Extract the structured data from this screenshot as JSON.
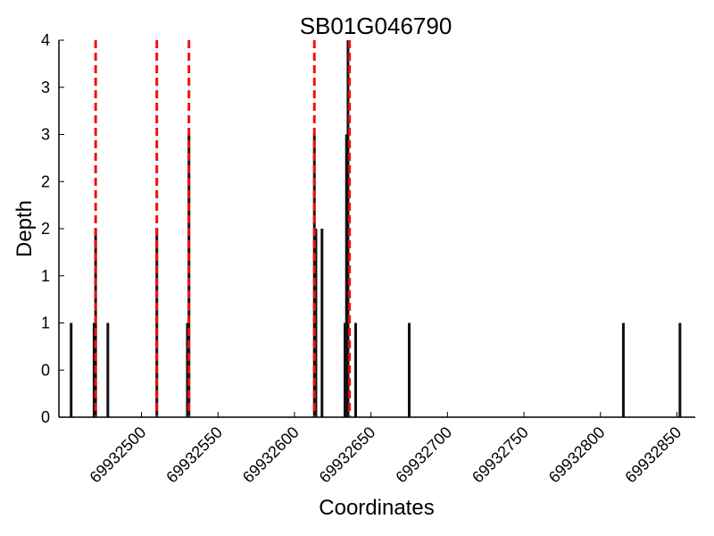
{
  "chart_data": {
    "type": "bar",
    "title": "SB01G046790",
    "xlabel": "Coordinates",
    "ylabel": "Depth",
    "xlim": [
      69932446,
      69932862
    ],
    "ylim": [
      0,
      4
    ],
    "x_ticks": [
      69932500,
      69932550,
      69932600,
      69932650,
      69932700,
      69932750,
      69932800,
      69932850
    ],
    "x_tick_labels": [
      "69932500",
      "69932550",
      "69932600",
      "69932650",
      "69932700",
      "69932750",
      "69932800",
      "69932850"
    ],
    "y_ticks": [
      0,
      0.5,
      1,
      1.5,
      2,
      2.5,
      3,
      3.5,
      4
    ],
    "y_tick_labels": [
      "0",
      "0",
      "1",
      "1",
      "2",
      "2",
      "3",
      "3",
      "4"
    ],
    "bars": {
      "x": [
        69932454,
        69932469,
        69932470,
        69932478,
        69932510,
        69932530,
        69932531,
        69932613,
        69932614,
        69932618,
        69932633,
        69932634,
        69932635,
        69932640,
        69932675,
        69932815,
        69932852
      ],
      "values": [
        1,
        1,
        2,
        1,
        2,
        1,
        3,
        3,
        2,
        2,
        1,
        3,
        4,
        1,
        1,
        1,
        1
      ]
    },
    "reference_lines": {
      "x": [
        69932470,
        69932510,
        69932531,
        69932613,
        69932636
      ],
      "color": "#ee1111",
      "style": "dashed"
    },
    "grid": false,
    "legend": "none",
    "colors": {
      "bars": "#111111",
      "reference": "#ee1111",
      "axes": "#000000"
    }
  }
}
